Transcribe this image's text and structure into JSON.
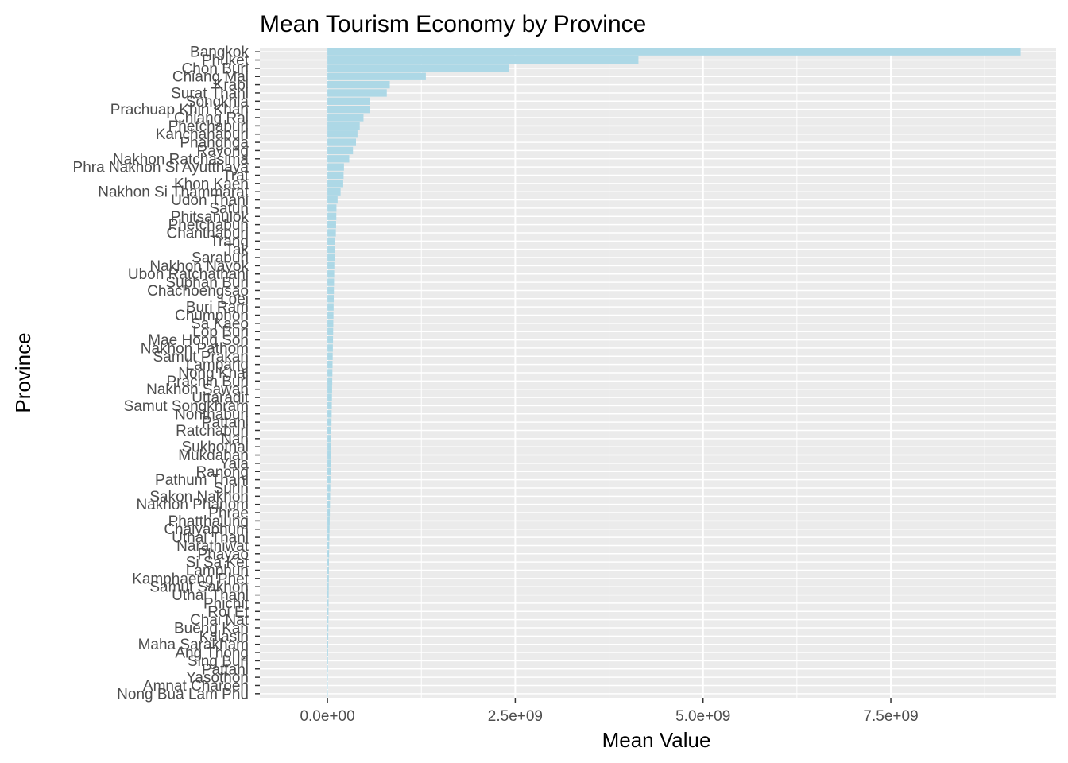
{
  "chart_data": {
    "type": "bar",
    "orientation": "horizontal",
    "title": "Mean Tourism Economy by Province",
    "xlabel": "Mean Value",
    "ylabel": "Province",
    "xlim": [
      -900000000,
      9700000000
    ],
    "x_ticks": [
      0,
      2500000000,
      5000000000,
      7500000000
    ],
    "x_tick_labels": [
      "0.0e+00",
      "2.5e+09",
      "5.0e+09",
      "7.5e+09"
    ],
    "grid": true,
    "colors": {
      "bar": "#add8e6",
      "panel": "#ebebeb",
      "grid": "#ffffff"
    },
    "categories": [
      "Bangkok",
      "Phuket",
      "Chon Buri",
      "Chiang Mai",
      "Krabi",
      "Surat Thani",
      "Songkhla",
      "Prachuap Khiri Khan",
      "Chiang Rai",
      "Phetchaburi",
      "Kanchanaburi",
      "Phangnga",
      "Rayong",
      "Nakhon Ratchasima",
      "Phra Nakhon Si Ayutthaya",
      "Trat",
      "Khon Kaen",
      "Nakhon Si Thammarat",
      "Udon Thani",
      "Satun",
      "Phitsanulok",
      "Phetchabun",
      "Chanthaburi",
      "Trang",
      "Tak",
      "Saraburi",
      "Nakhon Nayok",
      "Ubon Ratchathani",
      "Suphan Buri",
      "Chachoengsao",
      "Loei",
      "Buri Ram",
      "Chumphon",
      "Sa Kaeo",
      "Lop Buri",
      "Mae Hong Son",
      "Nakhon Pathom",
      "Samut Prakan",
      "Lampang",
      "Nong Khai",
      "Prachin Buri",
      "Nakhon Sawan",
      "Uttaradit",
      "Samut Songkhram",
      "Nonthaburi",
      "Pattani",
      "Ratchaburi",
      "Nan",
      "Sukhothai",
      "Mukdahan",
      "Yala",
      "Ranong",
      "Pathum Thani",
      "Surin",
      "Sakon Nakhon",
      "Nakhon Phanom",
      "Phrae",
      "Phatthalung",
      "Chaiyaphum",
      "Uthai Thani",
      "Narathiwat",
      "Phayao",
      "Si Sa Ket",
      "Lamphun",
      "Kamphaeng Phet",
      "Samut Sakhon",
      "Uthai Thani",
      "Phichit",
      "Roi Et",
      "Chai Nat",
      "Bueng Kan",
      "Kalasin",
      "Maha Sarakham",
      "Ang Thong",
      "Sing Buri",
      "Pattani",
      "Yasothon",
      "Amnat Charoen",
      "Nong Bua Lam Phu"
    ],
    "values": [
      9230000000,
      4140000000,
      2420000000,
      1310000000,
      830000000,
      790000000,
      570000000,
      560000000,
      480000000,
      430000000,
      400000000,
      380000000,
      340000000,
      290000000,
      220000000,
      215000000,
      210000000,
      175000000,
      135000000,
      120000000,
      118000000,
      115000000,
      112000000,
      100000000,
      97000000,
      95000000,
      92000000,
      90000000,
      88000000,
      86000000,
      84000000,
      82000000,
      80000000,
      78000000,
      76000000,
      74000000,
      72000000,
      70000000,
      68000000,
      66000000,
      64000000,
      62000000,
      60000000,
      58000000,
      56000000,
      54000000,
      52000000,
      50000000,
      48000000,
      46000000,
      44000000,
      42000000,
      40000000,
      38000000,
      36000000,
      34000000,
      32000000,
      30000000,
      28000000,
      26000000,
      24000000,
      22000000,
      20000000,
      19000000,
      18000000,
      17000000,
      16000000,
      15000000,
      14000000,
      13000000,
      12000000,
      11000000,
      10000000,
      9000000,
      8000000,
      7000000,
      6000000,
      5000000,
      4000000
    ]
  }
}
